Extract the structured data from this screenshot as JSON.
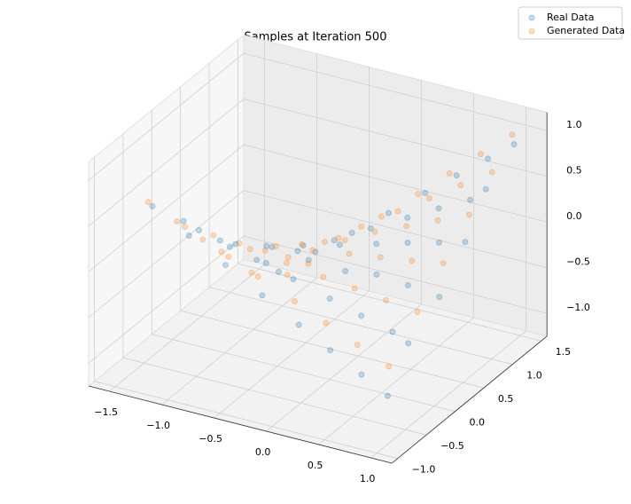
{
  "chart_data": {
    "type": "scatter3d",
    "title": "Samples at Iteration 500",
    "xlim": [
      -1.7,
      1.2
    ],
    "ylim": [
      -1.1,
      1.6
    ],
    "zlim": [
      -1.25,
      1.2
    ],
    "xticks": [
      {
        "value": -1.5,
        "label": "−1.5"
      },
      {
        "value": -1,
        "label": "−1.0"
      },
      {
        "value": -0.5,
        "label": "−0.5"
      },
      {
        "value": 0,
        "label": "0.0"
      },
      0.5,
      {
        "value": 1,
        "label": "1.0"
      }
    ],
    "yticks": [
      {
        "value": -1,
        "label": "−1.0"
      },
      {
        "value": -0.5,
        "label": "−0.5"
      },
      {
        "value": 0,
        "label": "0.0"
      },
      0.5,
      {
        "value": 1,
        "label": "1.0"
      },
      1.5
    ],
    "zticks": [
      {
        "value": -1,
        "label": "−1.0"
      },
      {
        "value": -0.5,
        "label": "−0.5"
      },
      {
        "value": 0,
        "label": "0.0"
      },
      0.5,
      {
        "value": 1,
        "label": "1.0"
      }
    ],
    "grid": true,
    "legend": "upper right",
    "series": [
      {
        "name": "Real Data",
        "color": "#1f77b4",
        "x": [
          -1.2,
          -0.85,
          -0.5,
          -0.15,
          0.2,
          0.5,
          0.8,
          1.05,
          -1.15,
          -0.8,
          -0.45,
          -0.1,
          0.25,
          0.55,
          0.85,
          1.0,
          -1.25,
          -0.9,
          -0.55,
          -0.2,
          0.15,
          0.45,
          0.75,
          1.05,
          -1.2,
          -0.85,
          -0.5,
          -0.15,
          0.2,
          0.5,
          0.8,
          1.05,
          -1.1,
          -0.8,
          -0.45,
          -0.1,
          0.25,
          0.55,
          0.85,
          1.0,
          -1.2,
          -0.85,
          -0.5,
          -0.15,
          0.2,
          0.5,
          0.8,
          1.05
        ],
        "y": [
          -0.9,
          -0.9,
          -0.9,
          -0.9,
          -0.9,
          -0.9,
          -0.9,
          -0.9,
          -0.45,
          -0.45,
          -0.45,
          -0.45,
          -0.45,
          -0.45,
          -0.45,
          -0.45,
          0,
          0,
          0,
          0,
          0,
          0,
          0,
          0,
          0.45,
          0.45,
          0.45,
          0.45,
          0.45,
          0.45,
          0.45,
          0.45,
          0.9,
          0.9,
          0.9,
          0.9,
          0.9,
          0.9,
          0.9,
          0.9,
          1.3,
          1.3,
          1.3,
          1.3,
          1.3,
          1.3,
          1.3,
          1.3
        ],
        "z": [
          0.76,
          0.54,
          0.32,
          0.09,
          -0.13,
          -0.32,
          -0.5,
          -0.66,
          0.38,
          0.27,
          0.16,
          0.05,
          -0.06,
          -0.16,
          -0.25,
          -0.33,
          0.02,
          -0.03,
          0.04,
          0,
          -0.02,
          0.03,
          0,
          -0.04,
          -0.38,
          -0.27,
          -0.16,
          -0.05,
          0.06,
          0.16,
          0.25,
          0.33,
          -0.76,
          -0.54,
          -0.32,
          -0.09,
          0.13,
          0.32,
          0.5,
          0.66,
          -1.09,
          -0.77,
          -0.46,
          -0.14,
          0.18,
          0.46,
          0.73,
          0.96
        ]
      },
      {
        "name": "Generated Data",
        "color": "#ff7f0e",
        "x": [
          -1.35,
          -1.0,
          -0.65,
          -0.3,
          0.05,
          0.35,
          0.65,
          0.95,
          -1.35,
          -1.0,
          -0.65,
          -0.3,
          0.05,
          0.35,
          0.65,
          0.95,
          -1.35,
          -1.0,
          -0.65,
          -0.3,
          0.05,
          0.35,
          0.65,
          0.95,
          -1.35,
          -1.0,
          -0.65,
          -0.3,
          0.05,
          0.35,
          0.65,
          0.95,
          -1.35,
          -1.0,
          -0.65,
          -0.3,
          0.05,
          0.35,
          0.65,
          0.95,
          -1.2,
          -1.0,
          -0.65,
          -0.3,
          0.05,
          0.35,
          0.65,
          0.95
        ],
        "y": [
          -0.7,
          -0.7,
          -0.7,
          -0.7,
          -0.7,
          -0.7,
          -0.7,
          -0.7,
          -0.2,
          -0.2,
          -0.2,
          -0.2,
          -0.2,
          -0.2,
          -0.2,
          -0.2,
          0.25,
          0.25,
          0.25,
          0.25,
          0.25,
          0.25,
          0.25,
          0.25,
          0.7,
          0.7,
          0.7,
          0.7,
          0.7,
          0.7,
          0.7,
          0.7,
          1.1,
          1.1,
          1.1,
          1.1,
          1.1,
          1.1,
          1.1,
          1.1,
          1.45,
          1.45,
          1.45,
          1.45,
          1.45,
          1.45,
          1.45,
          1.45
        ],
        "z": [
          0.66,
          0.49,
          0.32,
          0.15,
          -0.02,
          -0.17,
          -0.32,
          -0.47,
          0.19,
          0.14,
          0.09,
          0.04,
          -0.01,
          -0.05,
          -0.09,
          -0.13,
          -0.24,
          -0.18,
          -0.11,
          -0.05,
          0.01,
          0.06,
          0.11,
          0.17,
          -0.66,
          -0.49,
          -0.32,
          -0.15,
          0.02,
          0.17,
          0.32,
          0.47,
          -1.04,
          -0.77,
          -0.5,
          -0.23,
          0.04,
          0.27,
          0.5,
          0.73,
          -1.2,
          -1.02,
          -0.66,
          -0.3,
          0.05,
          0.36,
          0.66,
          0.96
        ]
      }
    ]
  }
}
